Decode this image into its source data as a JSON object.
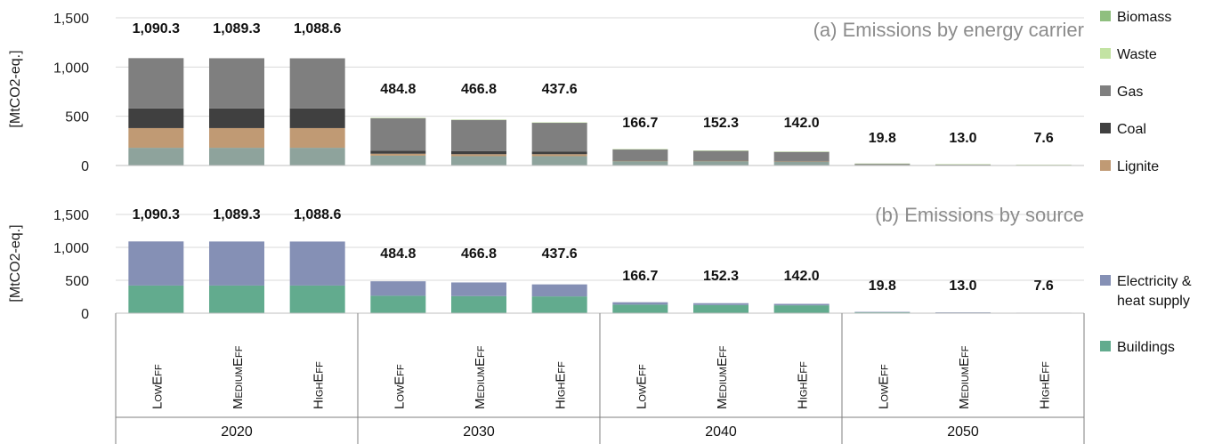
{
  "chart_data": [
    {
      "type": "bar",
      "stacked": true,
      "title": "(a) Emissions by energy carrier",
      "ylabel": "[MtCO2-eq.]",
      "ylim": [
        0,
        1500
      ],
      "yticks": [
        "0",
        "500",
        "1,000",
        "1,500"
      ],
      "grid": true,
      "legend_position": "right",
      "categories": [
        "2020 LowEff",
        "2020 MediumEff",
        "2020 HighEff",
        "2030 LowEff",
        "2030 MediumEff",
        "2030 HighEff",
        "2040 LowEff",
        "2040 MediumEff",
        "2040 HighEff",
        "2050 LowEff",
        "2050 MediumEff",
        "2050 HighEff"
      ],
      "totals": [
        "1,090.3",
        "1,089.3",
        "1,088.6",
        "484.8",
        "466.8",
        "437.6",
        "166.7",
        "152.3",
        "142.0",
        "19.8",
        "13.0",
        "7.6"
      ],
      "series": [
        {
          "key": "base",
          "color": "#8ea39c",
          "values": [
            180,
            180,
            180,
            100,
            95,
            95,
            45,
            45,
            40,
            5,
            3,
            2
          ]
        },
        {
          "name": "Lignite",
          "color": "#c09a74",
          "values": [
            200,
            200,
            200,
            20,
            20,
            20,
            3,
            3,
            3,
            0,
            0,
            0
          ]
        },
        {
          "name": "Coal",
          "color": "#404040",
          "values": [
            200,
            200,
            200,
            30,
            30,
            25,
            5,
            5,
            5,
            1,
            0,
            0
          ]
        },
        {
          "name": "Gas",
          "color": "#7f7f7f",
          "values": [
            510.3,
            509.3,
            508.6,
            331.8,
            318.8,
            294.6,
            110.7,
            97.3,
            91.0,
            12.8,
            9.0,
            4.6
          ]
        },
        {
          "name": "Waste",
          "color": "#c3e3a3",
          "values": [
            0,
            0,
            0,
            3,
            3,
            3,
            3,
            2,
            3,
            1,
            1,
            1
          ]
        },
        {
          "name": "Biomass",
          "color": "#8fbf7f",
          "values": [
            0,
            0,
            0,
            0,
            0,
            0,
            0,
            0,
            0,
            0,
            0,
            0
          ]
        }
      ]
    },
    {
      "type": "bar",
      "stacked": true,
      "title": "(b) Emissions by source",
      "ylabel": "[MtCO2-eq.]",
      "ylim": [
        0,
        1500
      ],
      "yticks": [
        "0",
        "500",
        "1,000",
        "1,500"
      ],
      "grid": true,
      "legend_position": "right",
      "categories": [
        "2020 LowEff",
        "2020 MediumEff",
        "2020 HighEff",
        "2030 LowEff",
        "2030 MediumEff",
        "2030 HighEff",
        "2040 LowEff",
        "2040 MediumEff",
        "2040 HighEff",
        "2050 LowEff",
        "2050 MediumEff",
        "2050 HighEff"
      ],
      "totals": [
        "1,090.3",
        "1,089.3",
        "1,088.6",
        "484.8",
        "466.8",
        "437.6",
        "166.7",
        "152.3",
        "142.0",
        "19.8",
        "13.0",
        "7.6"
      ],
      "series": [
        {
          "name": "Buildings",
          "color": "#62ab8e",
          "values": [
            420,
            420,
            420,
            265,
            260,
            255,
            130,
            125,
            120,
            15,
            10,
            6
          ]
        },
        {
          "name": "Electricity & heat supply",
          "legend_lines": [
            "Electricity &",
            "heat supply"
          ],
          "color": "#8590b5",
          "values": [
            670.3,
            669.3,
            668.6,
            219.8,
            206.8,
            182.6,
            36.7,
            27.3,
            22.0,
            4.8,
            3.0,
            1.6
          ]
        }
      ]
    }
  ],
  "x_axis": {
    "scenarios": [
      {
        "cap": "L",
        "rest": "OW",
        "cap2": "E",
        "rest2": "FF"
      },
      {
        "cap": "M",
        "rest": "EDIUM",
        "cap2": "E",
        "rest2": "FF"
      },
      {
        "cap": "H",
        "rest": "IGH",
        "cap2": "E",
        "rest2": "FF"
      },
      {
        "cap": "L",
        "rest": "OW",
        "cap2": "E",
        "rest2": "FF"
      },
      {
        "cap": "M",
        "rest": "EDIUM",
        "cap2": "E",
        "rest2": "FF"
      },
      {
        "cap": "H",
        "rest": "IGH",
        "cap2": "E",
        "rest2": "FF"
      },
      {
        "cap": "L",
        "rest": "OW",
        "cap2": "E",
        "rest2": "FF"
      },
      {
        "cap": "M",
        "rest": "EDIUM",
        "cap2": "E",
        "rest2": "FF"
      },
      {
        "cap": "H",
        "rest": "IGH",
        "cap2": "E",
        "rest2": "FF"
      },
      {
        "cap": "L",
        "rest": "OW",
        "cap2": "E",
        "rest2": "FF"
      },
      {
        "cap": "M",
        "rest": "EDIUM",
        "cap2": "E",
        "rest2": "FF"
      },
      {
        "cap": "H",
        "rest": "IGH",
        "cap2": "E",
        "rest2": "FF"
      }
    ],
    "years": [
      "2020",
      "2030",
      "2040",
      "2050"
    ]
  },
  "legend_top_order": [
    "Biomass",
    "Waste",
    "Gas",
    "Coal",
    "Lignite"
  ],
  "legend_bottom_order": [
    "Electricity & heat supply",
    "Buildings"
  ]
}
